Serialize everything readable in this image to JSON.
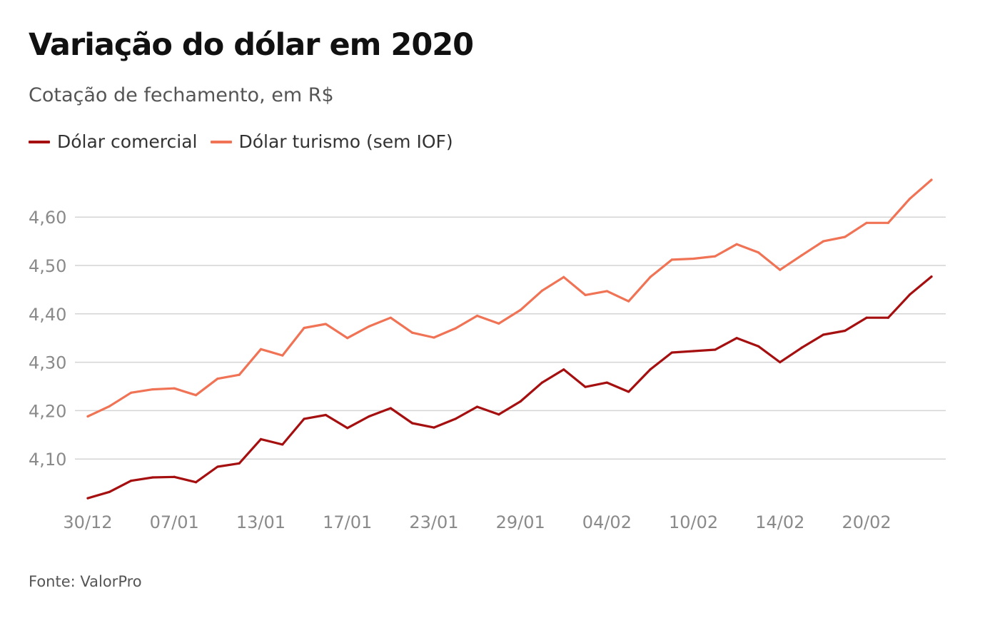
{
  "title": "Variação do dólar em 2020",
  "subtitle": "Cotação de fechamento, em R$",
  "source": "Fonte: ValorPro",
  "chart_data": {
    "type": "line",
    "title": "Variação do dólar em 2020",
    "subtitle": "Cotação de fechamento, em R$",
    "xlabel": "",
    "ylabel": "",
    "ylim": [
      4.0,
      4.7
    ],
    "yticks": [
      4.1,
      4.2,
      4.3,
      4.4,
      4.5,
      4.6
    ],
    "ytick_labels": [
      "4,10",
      "4,20",
      "4,30",
      "4,40",
      "4,50",
      "4,60"
    ],
    "xtick_labels": [
      {
        "index": 0,
        "label": "30/12"
      },
      {
        "index": 4,
        "label": "07/01"
      },
      {
        "index": 8,
        "label": "13/01"
      },
      {
        "index": 12,
        "label": "17/01"
      },
      {
        "index": 16,
        "label": "23/01"
      },
      {
        "index": 20,
        "label": "29/01"
      },
      {
        "index": 24,
        "label": "04/02"
      },
      {
        "index": 28,
        "label": "10/02"
      },
      {
        "index": 32,
        "label": "14/02"
      },
      {
        "index": 36,
        "label": "20/02"
      }
    ],
    "grid": true,
    "legend_position": "top-left",
    "series": [
      {
        "name": "Dólar comercial",
        "color": "#a50f0f",
        "values": [
          4.019,
          4.032,
          4.055,
          4.062,
          4.063,
          4.052,
          4.084,
          4.091,
          4.141,
          4.13,
          4.183,
          4.191,
          4.164,
          4.188,
          4.205,
          4.174,
          4.165,
          4.183,
          4.208,
          4.192,
          4.219,
          4.258,
          4.285,
          4.249,
          4.258,
          4.239,
          4.285,
          4.32,
          4.323,
          4.326,
          4.35,
          4.333,
          4.3,
          4.33,
          4.357,
          4.365,
          4.392,
          4.392,
          4.44,
          4.477
        ]
      },
      {
        "name": "Dólar turismo (sem IOF)",
        "color": "#f07355",
        "values": [
          4.188,
          4.209,
          4.237,
          4.244,
          4.246,
          4.232,
          4.266,
          4.274,
          4.327,
          4.314,
          4.371,
          4.379,
          4.35,
          4.374,
          4.392,
          4.361,
          4.351,
          4.37,
          4.396,
          4.38,
          4.408,
          4.448,
          4.476,
          4.439,
          4.447,
          4.426,
          4.476,
          4.512,
          4.514,
          4.519,
          4.544,
          4.527,
          4.491,
          4.521,
          4.55,
          4.559,
          4.588,
          4.588,
          4.638,
          4.677
        ]
      }
    ]
  }
}
